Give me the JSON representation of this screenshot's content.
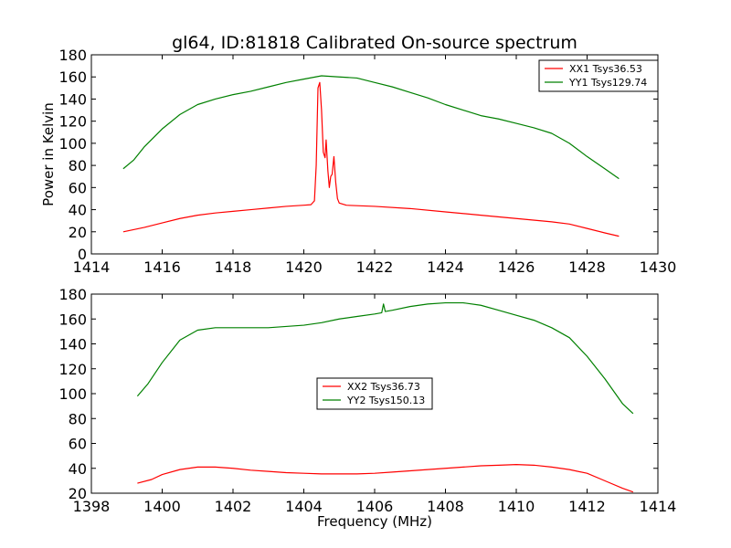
{
  "figure_title": "gl64, ID:81818 Calibrated On-source spectrum",
  "chart_data": [
    {
      "type": "line",
      "title": "gl64, ID:81818 Calibrated On-source spectrum",
      "xlabel": "",
      "ylabel": "Power in Kelvin",
      "xlim": [
        1414,
        1430
      ],
      "ylim": [
        0,
        180
      ],
      "xticks": [
        1414,
        1416,
        1418,
        1420,
        1422,
        1424,
        1426,
        1428,
        1430
      ],
      "yticks": [
        0,
        20,
        40,
        60,
        80,
        100,
        120,
        140,
        160,
        180
      ],
      "grid": false,
      "legend_position": "upper-right",
      "series": [
        {
          "name": "XX1 Tsys36.53",
          "color": "#ff0000",
          "points": [
            [
              1414.9,
              20
            ],
            [
              1415.5,
              24
            ],
            [
              1416,
              28
            ],
            [
              1416.5,
              32
            ],
            [
              1417,
              35
            ],
            [
              1417.5,
              37
            ],
            [
              1418,
              38.5
            ],
            [
              1418.5,
              40
            ],
            [
              1419,
              41.5
            ],
            [
              1419.5,
              43
            ],
            [
              1420,
              44
            ],
            [
              1420.2,
              44.5
            ],
            [
              1420.3,
              48
            ],
            [
              1420.35,
              80
            ],
            [
              1420.4,
              150
            ],
            [
              1420.45,
              155
            ],
            [
              1420.5,
              130
            ],
            [
              1420.55,
              92
            ],
            [
              1420.6,
              87
            ],
            [
              1420.63,
              103
            ],
            [
              1420.68,
              75
            ],
            [
              1420.72,
              60
            ],
            [
              1420.76,
              70
            ],
            [
              1420.8,
              72
            ],
            [
              1420.85,
              88
            ],
            [
              1420.9,
              65
            ],
            [
              1420.95,
              50
            ],
            [
              1421,
              46
            ],
            [
              1421.2,
              44
            ],
            [
              1422,
              43
            ],
            [
              1423,
              41
            ],
            [
              1424,
              38
            ],
            [
              1425,
              35
            ],
            [
              1426,
              32
            ],
            [
              1427,
              29
            ],
            [
              1427.5,
              27
            ],
            [
              1428,
              23
            ],
            [
              1428.5,
              19
            ],
            [
              1428.9,
              16
            ]
          ]
        },
        {
          "name": "YY1 Tsys129.74",
          "color": "#008000",
          "points": [
            [
              1414.9,
              77
            ],
            [
              1415.2,
              85
            ],
            [
              1415.5,
              97
            ],
            [
              1416,
              113
            ],
            [
              1416.5,
              126
            ],
            [
              1417,
              135
            ],
            [
              1417.5,
              140
            ],
            [
              1418,
              144
            ],
            [
              1418.5,
              147
            ],
            [
              1419,
              151
            ],
            [
              1419.5,
              155
            ],
            [
              1420,
              158
            ],
            [
              1420.5,
              161
            ],
            [
              1421,
              160
            ],
            [
              1421.5,
              159
            ],
            [
              1422,
              155
            ],
            [
              1422.5,
              151
            ],
            [
              1423,
              146
            ],
            [
              1423.5,
              141
            ],
            [
              1424,
              135
            ],
            [
              1424.5,
              130
            ],
            [
              1425,
              125
            ],
            [
              1425.5,
              122
            ],
            [
              1426,
              118
            ],
            [
              1426.5,
              114
            ],
            [
              1427,
              109
            ],
            [
              1427.5,
              100
            ],
            [
              1428,
              88
            ],
            [
              1428.5,
              77
            ],
            [
              1428.9,
              68
            ]
          ]
        }
      ]
    },
    {
      "type": "line",
      "title": "",
      "xlabel": "Frequency (MHz)",
      "ylabel": "",
      "xlim": [
        1398,
        1414
      ],
      "ylim": [
        20,
        180
      ],
      "xticks": [
        1398,
        1400,
        1402,
        1404,
        1406,
        1408,
        1410,
        1412,
        1414
      ],
      "yticks": [
        20,
        40,
        60,
        80,
        100,
        120,
        140,
        160,
        180
      ],
      "grid": false,
      "legend_position": "center",
      "series": [
        {
          "name": "XX2 Tsys36.73",
          "color": "#ff0000",
          "points": [
            [
              1399.3,
              28
            ],
            [
              1399.7,
              31
            ],
            [
              1400,
              35
            ],
            [
              1400.5,
              39
            ],
            [
              1401,
              41
            ],
            [
              1401.5,
              41
            ],
            [
              1402,
              40
            ],
            [
              1402.5,
              38.5
            ],
            [
              1403,
              37.5
            ],
            [
              1403.5,
              36.5
            ],
            [
              1404,
              36
            ],
            [
              1404.5,
              35.5
            ],
            [
              1405,
              35.5
            ],
            [
              1405.5,
              35.5
            ],
            [
              1406,
              36
            ],
            [
              1406.5,
              37
            ],
            [
              1407,
              38
            ],
            [
              1407.5,
              39
            ],
            [
              1408,
              40
            ],
            [
              1408.5,
              41
            ],
            [
              1409,
              42
            ],
            [
              1409.5,
              42.5
            ],
            [
              1410,
              43
            ],
            [
              1410.5,
              42.5
            ],
            [
              1411,
              41
            ],
            [
              1411.5,
              39
            ],
            [
              1412,
              36
            ],
            [
              1412.5,
              30
            ],
            [
              1413,
              24
            ],
            [
              1413.3,
              21
            ]
          ]
        },
        {
          "name": "YY2 Tsys150.13",
          "color": "#008000",
          "points": [
            [
              1399.3,
              98
            ],
            [
              1399.6,
              108
            ],
            [
              1400,
              125
            ],
            [
              1400.5,
              143
            ],
            [
              1401,
              151
            ],
            [
              1401.5,
              153
            ],
            [
              1402,
              153
            ],
            [
              1402.5,
              153
            ],
            [
              1403,
              153
            ],
            [
              1403.5,
              154
            ],
            [
              1404,
              155
            ],
            [
              1404.5,
              157
            ],
            [
              1405,
              160
            ],
            [
              1405.5,
              162
            ],
            [
              1406,
              164
            ],
            [
              1406.2,
              165
            ],
            [
              1406.25,
              172
            ],
            [
              1406.3,
              166
            ],
            [
              1406.5,
              167
            ],
            [
              1407,
              170
            ],
            [
              1407.5,
              172
            ],
            [
              1408,
              173
            ],
            [
              1408.5,
              173
            ],
            [
              1409,
              171
            ],
            [
              1409.5,
              167
            ],
            [
              1410,
              163
            ],
            [
              1410.5,
              159
            ],
            [
              1411,
              153
            ],
            [
              1411.5,
              145
            ],
            [
              1412,
              130
            ],
            [
              1412.5,
              112
            ],
            [
              1413,
              92
            ],
            [
              1413.3,
              84
            ]
          ]
        }
      ]
    }
  ]
}
